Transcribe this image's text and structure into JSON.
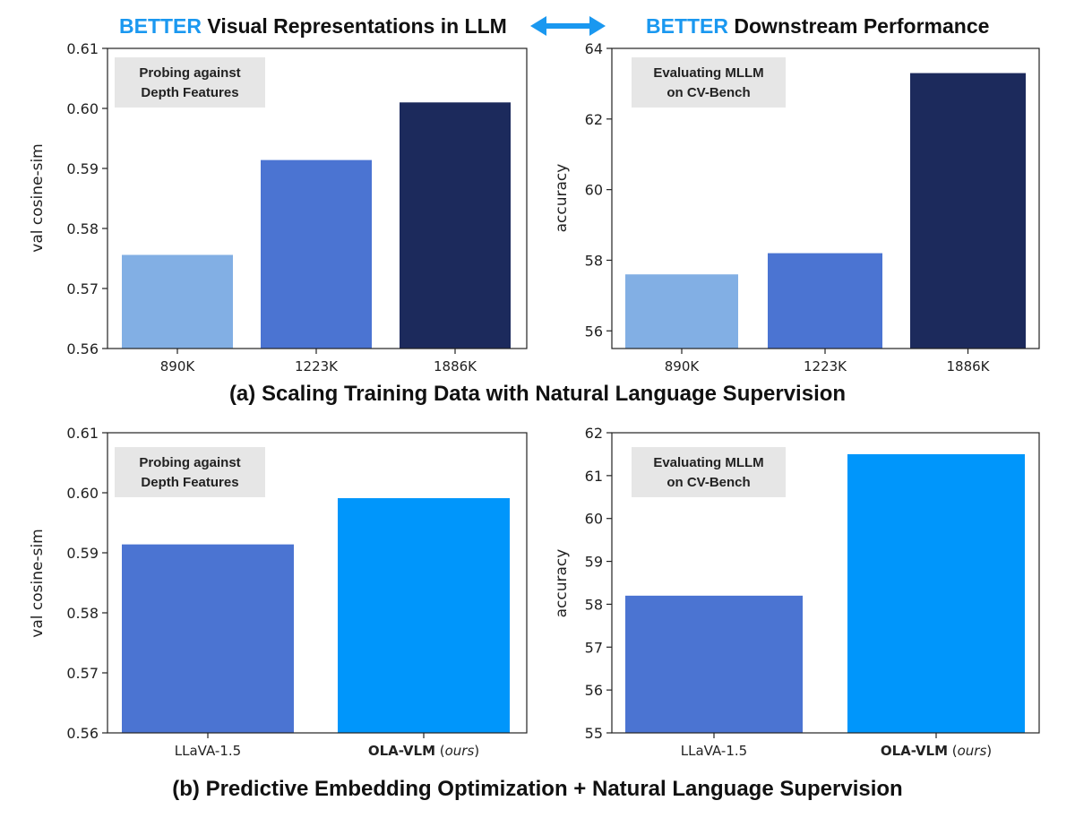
{
  "header": {
    "left": {
      "accent": "BETTER",
      "text": " Visual Representations in LLM"
    },
    "right": {
      "accent": "BETTER",
      "text": " Downstream Performance"
    }
  },
  "captions": {
    "a": "(a) Scaling Training Data with Natural Language Supervision",
    "b": "(b) Predictive Embedding Optimization + Natural Language Supervision"
  },
  "colors": {
    "accent": "#1a98f0",
    "arrow": "#1a98f0"
  },
  "chart_data": [
    {
      "type": "bar",
      "panel": "a-left",
      "categories": [
        "890K",
        "1223K",
        "1886K"
      ],
      "values": [
        0.5756,
        0.5914,
        0.601
      ],
      "colors": [
        "#82afe4",
        "#4b74d2",
        "#1c2a5c"
      ],
      "ylabel": "val cosine-sim",
      "ylim": [
        0.56,
        0.61
      ],
      "yticks": [
        0.56,
        0.57,
        0.58,
        0.59,
        0.6,
        0.61
      ],
      "ytick_labels": [
        "0.56",
        "0.57",
        "0.58",
        "0.59",
        "0.60",
        "0.61"
      ],
      "annotation": [
        "Probing against",
        "Depth Features"
      ],
      "grid": false
    },
    {
      "type": "bar",
      "panel": "a-right",
      "categories": [
        "890K",
        "1223K",
        "1886K"
      ],
      "values": [
        57.6,
        58.2,
        63.3
      ],
      "colors": [
        "#82afe4",
        "#4b74d2",
        "#1c2a5c"
      ],
      "ylabel": "accuracy",
      "ylim": [
        55.5,
        64
      ],
      "yticks": [
        56,
        58,
        60,
        62,
        64
      ],
      "ytick_labels": [
        "56",
        "58",
        "60",
        "62",
        "64"
      ],
      "annotation": [
        "Evaluating MLLM",
        "on CV-Bench"
      ],
      "grid": false
    },
    {
      "type": "bar",
      "panel": "b-left",
      "categories": [
        "LLaVA-1.5",
        "OLA-VLM (ours)"
      ],
      "category_parts": [
        [
          {
            "text": "LLaVA-1.5",
            "style": "normal"
          }
        ],
        [
          {
            "text": "OLA-VLM",
            "style": "bold"
          },
          {
            "text": " (",
            "style": "normal"
          },
          {
            "text": "ours",
            "style": "italic"
          },
          {
            "text": ")",
            "style": "normal"
          }
        ]
      ],
      "values": [
        0.5914,
        0.5991
      ],
      "colors": [
        "#4b74d2",
        "#0096fb"
      ],
      "ylabel": "val cosine-sim",
      "ylim": [
        0.56,
        0.61
      ],
      "yticks": [
        0.56,
        0.57,
        0.58,
        0.59,
        0.6,
        0.61
      ],
      "ytick_labels": [
        "0.56",
        "0.57",
        "0.58",
        "0.59",
        "0.60",
        "0.61"
      ],
      "annotation": [
        "Probing against",
        "Depth Features"
      ],
      "grid": false
    },
    {
      "type": "bar",
      "panel": "b-right",
      "categories": [
        "LLaVA-1.5",
        "OLA-VLM (ours)"
      ],
      "category_parts": [
        [
          {
            "text": "LLaVA-1.5",
            "style": "normal"
          }
        ],
        [
          {
            "text": "OLA-VLM",
            "style": "bold"
          },
          {
            "text": " (",
            "style": "normal"
          },
          {
            "text": "ours",
            "style": "italic"
          },
          {
            "text": ")",
            "style": "normal"
          }
        ]
      ],
      "values": [
        58.2,
        61.5
      ],
      "colors": [
        "#4b74d2",
        "#0096fb"
      ],
      "ylabel": "accuracy",
      "ylim": [
        55,
        62
      ],
      "yticks": [
        55,
        56,
        57,
        58,
        59,
        60,
        61,
        62
      ],
      "ytick_labels": [
        "55",
        "56",
        "57",
        "58",
        "59",
        "60",
        "61",
        "62"
      ],
      "annotation": [
        "Evaluating MLLM",
        "on CV-Bench"
      ],
      "grid": false
    }
  ]
}
